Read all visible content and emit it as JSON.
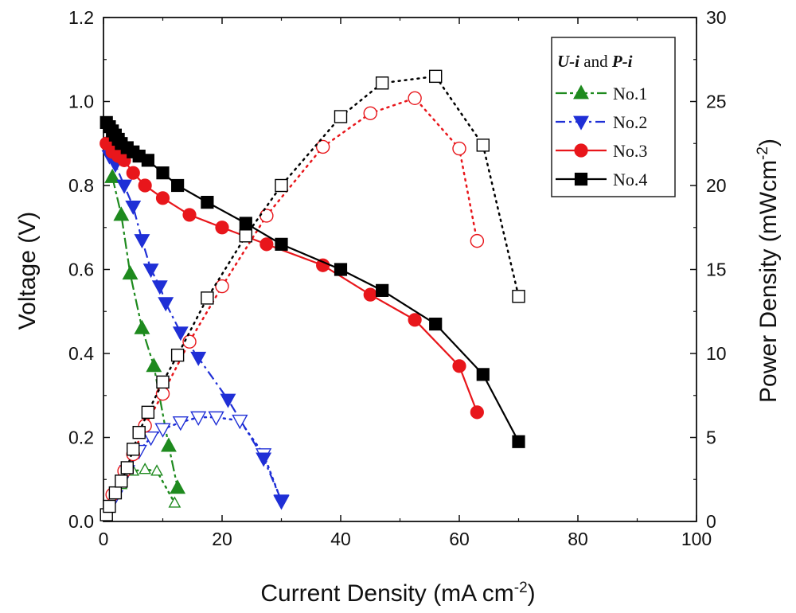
{
  "chart_data": {
    "type": "line",
    "xlabel": "Current Density (mA cm",
    "xlabel_sup": "-2",
    "xlabel_end": ")",
    "ylabel": "Voltage (V)",
    "y2label": "Power Density (mWcm",
    "y2label_sup": "-2",
    "y2label_end": ")",
    "xlim": [
      0,
      100
    ],
    "ylim": [
      0,
      1.2
    ],
    "y2lim": [
      0,
      30
    ],
    "x_ticks": [
      "0",
      "20",
      "40",
      "60",
      "80",
      "100"
    ],
    "y_ticks": [
      "0.0",
      "0.2",
      "0.4",
      "0.6",
      "0.8",
      "1.0",
      "1.2"
    ],
    "y2_ticks": [
      "0",
      "5",
      "10",
      "15",
      "20",
      "25",
      "30"
    ],
    "legend": {
      "title_a": "U-i",
      "title_mid": " and ",
      "title_b": "P-i",
      "position": "top-right"
    },
    "series": [
      {
        "name": "No.1",
        "color": "#1e8a1e",
        "marker": "triangle-up",
        "ui_x": [
          1.5,
          3.0,
          4.5,
          6.5,
          8.5,
          11.0,
          12.5
        ],
        "ui_y": [
          0.82,
          0.73,
          0.59,
          0.46,
          0.37,
          0.18,
          0.08
        ],
        "pi_x": [
          1.0,
          3.0,
          5.0,
          7.0,
          9.0,
          12.0
        ],
        "pi_y": [
          1.0,
          2.2,
          3.0,
          3.1,
          3.0,
          1.1
        ]
      },
      {
        "name": "No.2",
        "color": "#1f2fd6",
        "marker": "triangle-down",
        "ui_x": [
          1.0,
          2.0,
          3.5,
          5.0,
          6.5,
          8.0,
          9.5,
          10.5,
          13.0,
          16.0,
          21.0,
          27.0,
          30.0
        ],
        "ui_y": [
          0.87,
          0.85,
          0.8,
          0.75,
          0.67,
          0.6,
          0.56,
          0.52,
          0.45,
          0.39,
          0.29,
          0.15,
          0.05
        ],
        "pi_x": [
          2.0,
          4.0,
          6.0,
          8.0,
          10.0,
          13.0,
          16.0,
          19.0,
          23.0,
          27.0,
          30.0
        ],
        "pi_y": [
          1.5,
          3.0,
          4.2,
          5.0,
          5.5,
          5.9,
          6.2,
          6.2,
          6.0,
          4.0,
          1.2
        ]
      },
      {
        "name": "No.3",
        "color": "#e8161b",
        "marker": "circle",
        "ui_x": [
          0.5,
          1.5,
          2.5,
          3.5,
          5.0,
          7.0,
          10.0,
          14.5,
          20.0,
          27.5,
          37.0,
          45.0,
          52.5,
          60.0,
          63.0
        ],
        "ui_y": [
          0.9,
          0.88,
          0.87,
          0.86,
          0.83,
          0.8,
          0.77,
          0.73,
          0.7,
          0.66,
          0.61,
          0.54,
          0.48,
          0.37,
          0.26
        ],
        "pi_x": [
          1.5,
          3.5,
          5.0,
          7.0,
          10.0,
          14.5,
          20.0,
          27.5,
          37.0,
          45.0,
          52.5,
          60.0,
          63.0
        ],
        "pi_y": [
          1.6,
          3.0,
          4.0,
          5.7,
          7.6,
          10.7,
          14.0,
          18.2,
          22.3,
          24.3,
          25.2,
          22.2,
          16.7
        ]
      },
      {
        "name": "No.4",
        "color": "#000000",
        "marker": "square",
        "ui_x": [
          0.5,
          1.0,
          1.5,
          2.0,
          2.5,
          3.0,
          4.0,
          5.0,
          6.0,
          7.5,
          10.0,
          12.5,
          17.5,
          24.0,
          30.0,
          40.0,
          47.0,
          56.0,
          64.0,
          70.0
        ],
        "ui_y": [
          0.95,
          0.94,
          0.93,
          0.92,
          0.91,
          0.9,
          0.89,
          0.88,
          0.87,
          0.86,
          0.83,
          0.8,
          0.76,
          0.71,
          0.66,
          0.6,
          0.55,
          0.47,
          0.35,
          0.19
        ],
        "pi_x": [
          0.5,
          1.0,
          2.0,
          3.0,
          4.0,
          5.0,
          6.0,
          7.5,
          10.0,
          12.5,
          17.5,
          24.0,
          30.0,
          40.0,
          47.0,
          56.0,
          64.0,
          70.0
        ],
        "pi_y": [
          0.4,
          0.9,
          1.7,
          2.4,
          3.2,
          4.3,
          5.3,
          6.5,
          8.3,
          9.9,
          13.3,
          17.0,
          20.0,
          24.1,
          26.1,
          26.5,
          22.4,
          13.4
        ]
      }
    ]
  }
}
